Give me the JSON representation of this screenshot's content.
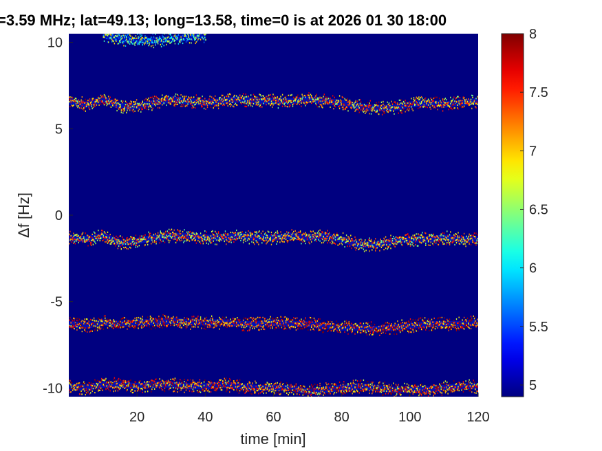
{
  "chart_data": {
    "type": "heatmap",
    "title": "=3.59 MHz;  lat=49.13; long=13.58, time=0 is at 2026 01 30 18:00",
    "xlabel": "time [min]",
    "ylabel": "Δf [Hz]",
    "xlim": [
      0,
      120
    ],
    "ylim": [
      -10.5,
      10.5
    ],
    "x_ticks": [
      20,
      40,
      60,
      80,
      100,
      120
    ],
    "x_tick_labels": [
      "20",
      "40",
      "60",
      "80",
      "100",
      "120"
    ],
    "y_ticks": [
      -10,
      -5,
      0,
      5,
      10
    ],
    "y_tick_labels": [
      "-10",
      "-5",
      "0",
      "5",
      "10"
    ],
    "colorbar": {
      "min": 4.9,
      "max": 8,
      "colormap": "jet",
      "ticks": [
        5,
        5.5,
        6,
        6.5,
        7,
        7.5,
        8
      ],
      "tick_labels": [
        "5",
        "5.5",
        "6",
        "6.5",
        "7",
        "7.5",
        "8"
      ]
    },
    "background_value": 4.9,
    "traces": [
      {
        "points": [
          [
            0,
            6.6
          ],
          [
            5,
            6.4
          ],
          [
            10,
            6.7
          ],
          [
            15,
            6.3
          ],
          [
            20,
            6.3
          ],
          [
            25,
            6.5
          ],
          [
            30,
            6.7
          ],
          [
            35,
            6.6
          ],
          [
            40,
            6.5
          ],
          [
            45,
            6.6
          ],
          [
            50,
            6.7
          ],
          [
            55,
            6.6
          ],
          [
            60,
            6.6
          ],
          [
            65,
            6.6
          ],
          [
            70,
            6.7
          ],
          [
            75,
            6.6
          ],
          [
            80,
            6.5
          ],
          [
            85,
            6.3
          ],
          [
            90,
            6.2
          ],
          [
            95,
            6.2
          ],
          [
            100,
            6.4
          ],
          [
            105,
            6.5
          ],
          [
            110,
            6.4
          ],
          [
            115,
            6.5
          ],
          [
            120,
            6.6
          ]
        ],
        "intensity": 7.1
      },
      {
        "points": [
          [
            0,
            -1.3
          ],
          [
            5,
            -1.4
          ],
          [
            10,
            -1.2
          ],
          [
            15,
            -1.6
          ],
          [
            20,
            -1.5
          ],
          [
            25,
            -1.3
          ],
          [
            30,
            -1.2
          ],
          [
            35,
            -1.2
          ],
          [
            40,
            -1.3
          ],
          [
            45,
            -1.3
          ],
          [
            50,
            -1.2
          ],
          [
            55,
            -1.3
          ],
          [
            60,
            -1.3
          ],
          [
            65,
            -1.2
          ],
          [
            70,
            -1.3
          ],
          [
            75,
            -1.2
          ],
          [
            80,
            -1.4
          ],
          [
            85,
            -1.7
          ],
          [
            90,
            -1.7
          ],
          [
            95,
            -1.5
          ],
          [
            100,
            -1.4
          ],
          [
            105,
            -1.4
          ],
          [
            110,
            -1.3
          ],
          [
            115,
            -1.4
          ],
          [
            120,
            -1.4
          ]
        ],
        "intensity": 7.0
      },
      {
        "points": [
          [
            0,
            -6.3
          ],
          [
            5,
            -6.4
          ],
          [
            10,
            -6.2
          ],
          [
            15,
            -6.3
          ],
          [
            20,
            -6.2
          ],
          [
            25,
            -6.2
          ],
          [
            30,
            -6.1
          ],
          [
            35,
            -6.2
          ],
          [
            40,
            -6.2
          ],
          [
            45,
            -6.2
          ],
          [
            50,
            -6.3
          ],
          [
            55,
            -6.3
          ],
          [
            60,
            -6.2
          ],
          [
            65,
            -6.3
          ],
          [
            70,
            -6.3
          ],
          [
            75,
            -6.4
          ],
          [
            80,
            -6.5
          ],
          [
            85,
            -6.5
          ],
          [
            90,
            -6.6
          ],
          [
            95,
            -6.5
          ],
          [
            100,
            -6.4
          ],
          [
            105,
            -6.3
          ],
          [
            110,
            -6.3
          ],
          [
            115,
            -6.3
          ],
          [
            120,
            -6.2
          ]
        ],
        "intensity": 7.4
      },
      {
        "points": [
          [
            0,
            -9.9
          ],
          [
            5,
            -10.0
          ],
          [
            10,
            -9.8
          ],
          [
            15,
            -9.8
          ],
          [
            20,
            -9.9
          ],
          [
            25,
            -9.8
          ],
          [
            30,
            -9.8
          ],
          [
            35,
            -9.9
          ],
          [
            40,
            -9.9
          ],
          [
            45,
            -9.8
          ],
          [
            50,
            -9.9
          ],
          [
            55,
            -10.0
          ],
          [
            60,
            -10.0
          ],
          [
            65,
            -10.0
          ],
          [
            70,
            -10.2
          ],
          [
            75,
            -10.1
          ],
          [
            80,
            -10.0
          ],
          [
            85,
            -9.9
          ],
          [
            90,
            -10.0
          ],
          [
            95,
            -10.1
          ],
          [
            100,
            -10.1
          ],
          [
            105,
            -10.1
          ],
          [
            110,
            -10.0
          ],
          [
            115,
            -9.9
          ],
          [
            120,
            -9.9
          ]
        ],
        "intensity": 7.3
      },
      {
        "points": [
          [
            10,
            10.4
          ],
          [
            15,
            10.2
          ],
          [
            20,
            10.1
          ],
          [
            25,
            10.1
          ],
          [
            30,
            10.2
          ],
          [
            35,
            10.3
          ],
          [
            40,
            10.4
          ]
        ],
        "intensity": 6.2
      }
    ]
  }
}
